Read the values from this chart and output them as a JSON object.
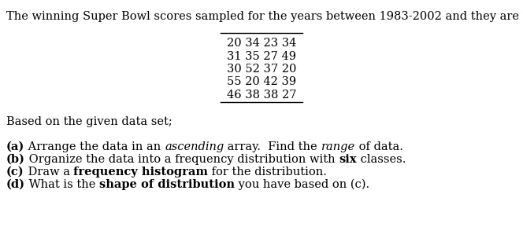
{
  "intro_text": "The winning Super Bowl scores sampled for the years between 1983-2002 and they are listed below.",
  "table_lines": [
    "20 34 23 34",
    "31 35 27 49",
    "30 52 37 20",
    "55 20 42 39",
    "46 38 38 27"
  ],
  "based_on": "Based on the given data set;",
  "bg_color": "#ffffff",
  "font_size": 10.5,
  "font_family": "DejaVu Serif",
  "fig_width": 6.64,
  "fig_height": 2.89,
  "dpi": 100
}
